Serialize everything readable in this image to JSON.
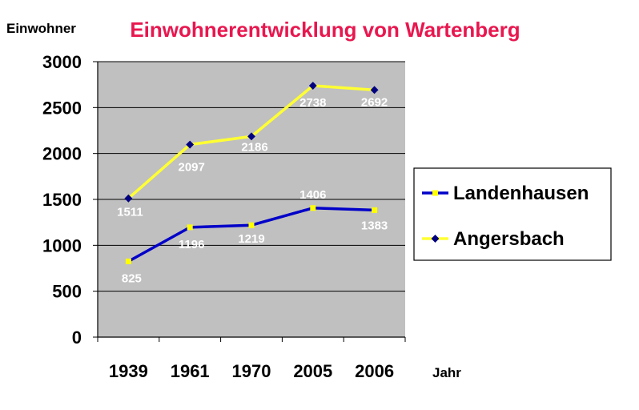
{
  "chart_data": {
    "type": "line",
    "title": "Einwohnerentwicklung von Wartenberg",
    "ylabel": "Einwohner",
    "xlabel": "Jahr",
    "categories": [
      "1939",
      "1961",
      "1970",
      "2005",
      "2006"
    ],
    "ylim": [
      0,
      3000
    ],
    "yticks": [
      0,
      500,
      1000,
      1500,
      2000,
      2500,
      3000
    ],
    "grid": true,
    "legend_position": "right",
    "colors": {
      "title": "#e8174f",
      "plot_background": "#c0c0c0",
      "gridline": "#000000",
      "marker": "#ffff00",
      "angersbach_marker": "#000080"
    },
    "series": [
      {
        "name": "Landenhausen",
        "color": "#0000c8",
        "values": [
          825,
          1196,
          1219,
          1406,
          1383
        ]
      },
      {
        "name": "Angersbach",
        "color": "#ffff33",
        "values": [
          1511,
          2097,
          2186,
          2738,
          2692
        ]
      }
    ]
  }
}
